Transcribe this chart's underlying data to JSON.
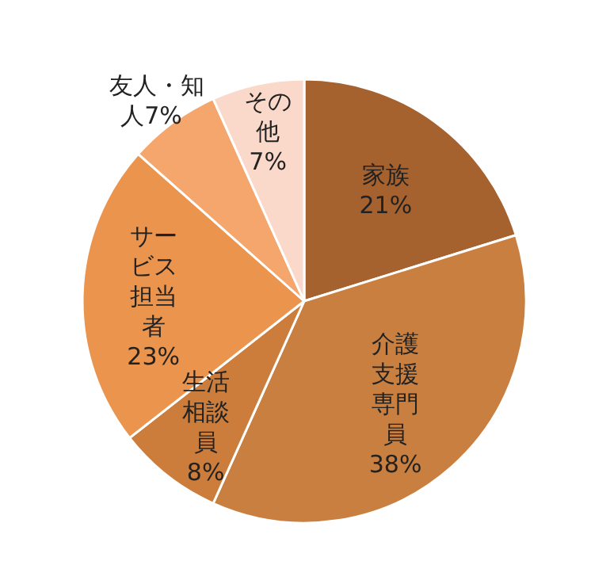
{
  "chart_data": {
    "type": "pie",
    "categories": [
      "家族",
      "介護支援専門員",
      "生活相談員",
      "サービス担当者",
      "友人・知人",
      "その他"
    ],
    "values": [
      21,
      38,
      8,
      23,
      7,
      7
    ],
    "value_labels": [
      "21%",
      "38%",
      "8%",
      "23%",
      "7%",
      "7%"
    ],
    "colors": [
      "#a5622f",
      "#c97f3f",
      "#cc7d3b",
      "#eb944d",
      "#f5a66d",
      "#fbd9ca"
    ]
  }
}
